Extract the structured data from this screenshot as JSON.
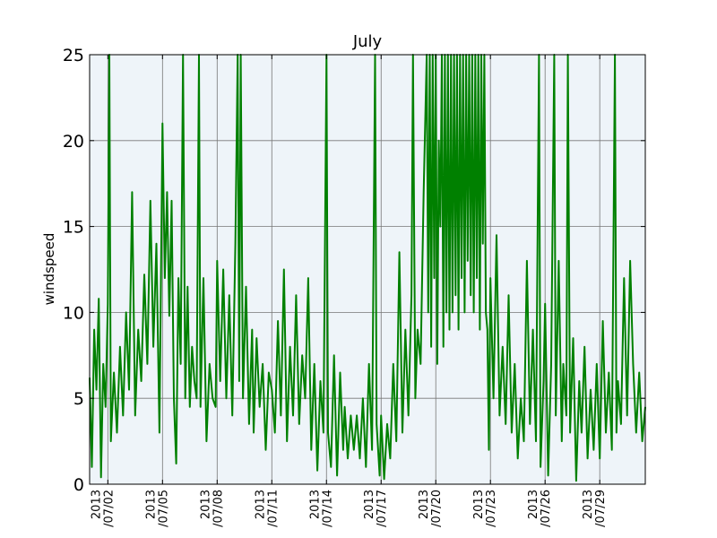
{
  "chart_data": {
    "type": "line",
    "title": "July",
    "xlabel": "",
    "ylabel": "windspeed",
    "ylim": [
      0,
      25
    ],
    "xlim": [
      "2013-07-01T00:00",
      "2013-07-31T12:00"
    ],
    "yticks": [
      0,
      5,
      10,
      15,
      20,
      25
    ],
    "xticks": [
      {
        "date": "2013-07-02",
        "label": [
          "2013",
          "/07/02"
        ]
      },
      {
        "date": "2013-07-05",
        "label": [
          "2013",
          "/07/05"
        ]
      },
      {
        "date": "2013-07-08",
        "label": [
          "2013",
          "/07/08"
        ]
      },
      {
        "date": "2013-07-11",
        "label": [
          "2013",
          "/07/11"
        ]
      },
      {
        "date": "2013-07-14",
        "label": [
          "2013",
          "/07/14"
        ]
      },
      {
        "date": "2013-07-17",
        "label": [
          "2013",
          "/07/17"
        ]
      },
      {
        "date": "2013-07-20",
        "label": [
          "2013",
          "/07/20"
        ]
      },
      {
        "date": "2013-07-23",
        "label": [
          "2013",
          "/07/23"
        ]
      },
      {
        "date": "2013-07-26",
        "label": [
          "2013",
          "/07/26"
        ]
      },
      {
        "date": "2013-07-29",
        "label": [
          "2013",
          "/07/29"
        ]
      }
    ],
    "grid": true,
    "plot_background": "#eef4f9",
    "series": [
      {
        "color": "#008000",
        "points": [
          [
            "2013-07-01T00:00",
            6.2
          ],
          [
            "2013-07-01T03:00",
            1.0
          ],
          [
            "2013-07-01T06:00",
            9.0
          ],
          [
            "2013-07-01T09:00",
            5.5
          ],
          [
            "2013-07-01T12:00",
            10.8
          ],
          [
            "2013-07-01T15:00",
            0.4
          ],
          [
            "2013-07-01T18:00",
            7.0
          ],
          [
            "2013-07-01T21:00",
            4.5
          ],
          [
            "2013-07-02T00:00",
            10.5
          ],
          [
            "2013-07-02T02:00",
            25.0
          ],
          [
            "2013-07-02T04:00",
            2.5
          ],
          [
            "2013-07-02T08:00",
            6.5
          ],
          [
            "2013-07-02T12:00",
            3.0
          ],
          [
            "2013-07-02T16:00",
            8.0
          ],
          [
            "2013-07-02T20:00",
            4.0
          ],
          [
            "2013-07-03T00:00",
            10.0
          ],
          [
            "2013-07-03T04:00",
            5.5
          ],
          [
            "2013-07-03T08:00",
            17.0
          ],
          [
            "2013-07-03T12:00",
            4.0
          ],
          [
            "2013-07-03T16:00",
            9.0
          ],
          [
            "2013-07-03T20:00",
            6.0
          ],
          [
            "2013-07-04T00:00",
            12.2
          ],
          [
            "2013-07-04T04:00",
            7.0
          ],
          [
            "2013-07-04T08:00",
            16.5
          ],
          [
            "2013-07-04T12:00",
            8.0
          ],
          [
            "2013-07-04T16:00",
            14.0
          ],
          [
            "2013-07-04T20:00",
            3.0
          ],
          [
            "2013-07-05T00:00",
            21.0
          ],
          [
            "2013-07-05T03:00",
            12.0
          ],
          [
            "2013-07-05T06:00",
            17.0
          ],
          [
            "2013-07-05T09:00",
            9.8
          ],
          [
            "2013-07-05T12:00",
            16.5
          ],
          [
            "2013-07-05T15:00",
            5.0
          ],
          [
            "2013-07-05T18:00",
            1.2
          ],
          [
            "2013-07-05T21:00",
            12.0
          ],
          [
            "2013-07-06T00:00",
            7.0
          ],
          [
            "2013-07-06T03:00",
            25.0
          ],
          [
            "2013-07-06T06:00",
            5.0
          ],
          [
            "2013-07-06T09:00",
            11.5
          ],
          [
            "2013-07-06T12:00",
            4.5
          ],
          [
            "2013-07-06T15:00",
            8.0
          ],
          [
            "2013-07-06T18:00",
            6.0
          ],
          [
            "2013-07-06T21:00",
            5.0
          ],
          [
            "2013-07-07T00:00",
            25.0
          ],
          [
            "2013-07-07T02:00",
            4.5
          ],
          [
            "2013-07-07T06:00",
            12.0
          ],
          [
            "2013-07-07T10:00",
            2.5
          ],
          [
            "2013-07-07T14:00",
            7.0
          ],
          [
            "2013-07-07T18:00",
            5.0
          ],
          [
            "2013-07-07T22:00",
            4.5
          ],
          [
            "2013-07-08T00:00",
            13.0
          ],
          [
            "2013-07-08T04:00",
            6.0
          ],
          [
            "2013-07-08T08:00",
            12.5
          ],
          [
            "2013-07-08T12:00",
            5.0
          ],
          [
            "2013-07-08T16:00",
            11.0
          ],
          [
            "2013-07-08T20:00",
            4.0
          ],
          [
            "2013-07-09T00:00",
            14.0
          ],
          [
            "2013-07-09T03:00",
            25.0
          ],
          [
            "2013-07-09T05:00",
            6.0
          ],
          [
            "2013-07-09T07:00",
            25.0
          ],
          [
            "2013-07-09T10:00",
            5.0
          ],
          [
            "2013-07-09T14:00",
            11.5
          ],
          [
            "2013-07-09T18:00",
            3.5
          ],
          [
            "2013-07-09T22:00",
            9.0
          ],
          [
            "2013-07-10T00:00",
            3.0
          ],
          [
            "2013-07-10T04:00",
            8.5
          ],
          [
            "2013-07-10T08:00",
            4.5
          ],
          [
            "2013-07-10T12:00",
            7.0
          ],
          [
            "2013-07-10T16:00",
            2.0
          ],
          [
            "2013-07-10T20:00",
            6.5
          ],
          [
            "2013-07-11T00:00",
            5.5
          ],
          [
            "2013-07-11T04:00",
            3.0
          ],
          [
            "2013-07-11T08:00",
            9.5
          ],
          [
            "2013-07-11T12:00",
            4.0
          ],
          [
            "2013-07-11T16:00",
            12.5
          ],
          [
            "2013-07-11T20:00",
            2.5
          ],
          [
            "2013-07-12T00:00",
            8.0
          ],
          [
            "2013-07-12T04:00",
            4.0
          ],
          [
            "2013-07-12T08:00",
            11.0
          ],
          [
            "2013-07-12T12:00",
            3.5
          ],
          [
            "2013-07-12T16:00",
            7.5
          ],
          [
            "2013-07-12T20:00",
            5.0
          ],
          [
            "2013-07-13T00:00",
            12.0
          ],
          [
            "2013-07-13T04:00",
            2.0
          ],
          [
            "2013-07-13T08:00",
            7.0
          ],
          [
            "2013-07-13T12:00",
            0.8
          ],
          [
            "2013-07-13T16:00",
            6.0
          ],
          [
            "2013-07-13T20:00",
            3.0
          ],
          [
            "2013-07-14T00:00",
            25.0
          ],
          [
            "2013-07-14T02:00",
            3.0
          ],
          [
            "2013-07-14T06:00",
            1.0
          ],
          [
            "2013-07-14T10:00",
            7.5
          ],
          [
            "2013-07-14T14:00",
            0.5
          ],
          [
            "2013-07-14T18:00",
            6.5
          ],
          [
            "2013-07-14T22:00",
            2.0
          ],
          [
            "2013-07-15T00:00",
            4.5
          ],
          [
            "2013-07-15T04:00",
            1.5
          ],
          [
            "2013-07-15T08:00",
            4.0
          ],
          [
            "2013-07-15T12:00",
            2.0
          ],
          [
            "2013-07-15T16:00",
            4.0
          ],
          [
            "2013-07-15T20:00",
            1.5
          ],
          [
            "2013-07-16T00:00",
            5.0
          ],
          [
            "2013-07-16T04:00",
            1.0
          ],
          [
            "2013-07-16T08:00",
            7.0
          ],
          [
            "2013-07-16T12:00",
            2.0
          ],
          [
            "2013-07-16T16:00",
            25.0
          ],
          [
            "2013-07-16T18:00",
            3.5
          ],
          [
            "2013-07-16T22:00",
            0.5
          ],
          [
            "2013-07-17T00:00",
            4.0
          ],
          [
            "2013-07-17T04:00",
            0.3
          ],
          [
            "2013-07-17T08:00",
            3.5
          ],
          [
            "2013-07-17T12:00",
            1.5
          ],
          [
            "2013-07-17T16:00",
            7.0
          ],
          [
            "2013-07-17T20:00",
            2.5
          ],
          [
            "2013-07-18T00:00",
            13.5
          ],
          [
            "2013-07-18T04:00",
            3.0
          ],
          [
            "2013-07-18T08:00",
            9.0
          ],
          [
            "2013-07-18T12:00",
            4.0
          ],
          [
            "2013-07-18T16:00",
            11.0
          ],
          [
            "2013-07-18T18:00",
            25.0
          ],
          [
            "2013-07-18T21:00",
            5.0
          ],
          [
            "2013-07-19T00:00",
            9.0
          ],
          [
            "2013-07-19T04:00",
            7.0
          ],
          [
            "2013-07-19T08:00",
            17.0
          ],
          [
            "2013-07-19T12:00",
            25.0
          ],
          [
            "2013-07-19T14:00",
            10.0
          ],
          [
            "2013-07-19T16:00",
            25.0
          ],
          [
            "2013-07-19T18:00",
            8.0
          ],
          [
            "2013-07-19T20:00",
            25.0
          ],
          [
            "2013-07-19T22:00",
            12.0
          ],
          [
            "2013-07-20T00:00",
            25.0
          ],
          [
            "2013-07-20T02:00",
            7.0
          ],
          [
            "2013-07-20T04:00",
            20.0
          ],
          [
            "2013-07-20T06:00",
            15.0
          ],
          [
            "2013-07-20T08:00",
            25.0
          ],
          [
            "2013-07-20T10:00",
            8.0
          ],
          [
            "2013-07-20T12:00",
            25.0
          ],
          [
            "2013-07-20T14:00",
            10.0
          ],
          [
            "2013-07-20T16:00",
            25.0
          ],
          [
            "2013-07-20T18:00",
            9.0
          ],
          [
            "2013-07-20T20:00",
            25.0
          ],
          [
            "2013-07-20T22:00",
            10.0
          ],
          [
            "2013-07-21T00:00",
            25.0
          ],
          [
            "2013-07-21T02:00",
            11.0
          ],
          [
            "2013-07-21T04:00",
            25.0
          ],
          [
            "2013-07-21T06:00",
            9.0
          ],
          [
            "2013-07-21T08:00",
            25.0
          ],
          [
            "2013-07-21T10:00",
            12.0
          ],
          [
            "2013-07-21T12:00",
            25.0
          ],
          [
            "2013-07-21T14:00",
            10.0
          ],
          [
            "2013-07-21T16:00",
            25.0
          ],
          [
            "2013-07-21T18:00",
            13.0
          ],
          [
            "2013-07-21T20:00",
            25.0
          ],
          [
            "2013-07-21T22:00",
            11.0
          ],
          [
            "2013-07-22T00:00",
            25.0
          ],
          [
            "2013-07-22T02:00",
            10.0
          ],
          [
            "2013-07-22T04:00",
            25.0
          ],
          [
            "2013-07-22T06:00",
            12.0
          ],
          [
            "2013-07-22T08:00",
            25.0
          ],
          [
            "2013-07-22T10:00",
            9.0
          ],
          [
            "2013-07-22T12:00",
            25.0
          ],
          [
            "2013-07-22T14:00",
            14.0
          ],
          [
            "2013-07-22T16:00",
            25.0
          ],
          [
            "2013-07-22T18:00",
            10.0
          ],
          [
            "2013-07-22T20:00",
            9.0
          ],
          [
            "2013-07-22T22:00",
            2.0
          ],
          [
            "2013-07-23T00:00",
            12.0
          ],
          [
            "2013-07-23T04:00",
            5.0
          ],
          [
            "2013-07-23T08:00",
            14.5
          ],
          [
            "2013-07-23T12:00",
            4.0
          ],
          [
            "2013-07-23T16:00",
            8.0
          ],
          [
            "2013-07-23T20:00",
            3.5
          ],
          [
            "2013-07-24T00:00",
            11.0
          ],
          [
            "2013-07-24T04:00",
            3.0
          ],
          [
            "2013-07-24T08:00",
            7.0
          ],
          [
            "2013-07-24T12:00",
            1.5
          ],
          [
            "2013-07-24T16:00",
            5.0
          ],
          [
            "2013-07-24T20:00",
            2.5
          ],
          [
            "2013-07-25T00:00",
            13.0
          ],
          [
            "2013-07-25T04:00",
            3.5
          ],
          [
            "2013-07-25T08:00",
            9.0
          ],
          [
            "2013-07-25T12:00",
            2.5
          ],
          [
            "2013-07-25T16:00",
            25.0
          ],
          [
            "2013-07-25T18:00",
            1.0
          ],
          [
            "2013-07-25T22:00",
            6.0
          ],
          [
            "2013-07-26T00:00",
            10.5
          ],
          [
            "2013-07-26T04:00",
            0.5
          ],
          [
            "2013-07-26T08:00",
            7.0
          ],
          [
            "2013-07-26T12:00",
            25.0
          ],
          [
            "2013-07-26T14:00",
            4.0
          ],
          [
            "2013-07-26T18:00",
            13.0
          ],
          [
            "2013-07-26T22:00",
            2.5
          ],
          [
            "2013-07-27T00:00",
            7.0
          ],
          [
            "2013-07-27T04:00",
            4.0
          ],
          [
            "2013-07-27T06:00",
            25.0
          ],
          [
            "2013-07-27T09:00",
            3.0
          ],
          [
            "2013-07-27T13:00",
            8.5
          ],
          [
            "2013-07-27T17:00",
            0.2
          ],
          [
            "2013-07-27T21:00",
            6.0
          ],
          [
            "2013-07-28T00:00",
            3.0
          ],
          [
            "2013-07-28T04:00",
            8.0
          ],
          [
            "2013-07-28T08:00",
            1.5
          ],
          [
            "2013-07-28T12:00",
            5.5
          ],
          [
            "2013-07-28T16:00",
            2.0
          ],
          [
            "2013-07-28T20:00",
            7.0
          ],
          [
            "2013-07-29T00:00",
            1.5
          ],
          [
            "2013-07-29T04:00",
            9.5
          ],
          [
            "2013-07-29T08:00",
            3.0
          ],
          [
            "2013-07-29T12:00",
            6.5
          ],
          [
            "2013-07-29T16:00",
            2.0
          ],
          [
            "2013-07-29T20:00",
            25.0
          ],
          [
            "2013-07-29T22:00",
            3.0
          ],
          [
            "2013-07-30T00:00",
            6.0
          ],
          [
            "2013-07-30T04:00",
            3.5
          ],
          [
            "2013-07-30T08:00",
            12.0
          ],
          [
            "2013-07-30T12:00",
            4.0
          ],
          [
            "2013-07-30T16:00",
            13.0
          ],
          [
            "2013-07-30T20:00",
            7.0
          ],
          [
            "2013-07-31T00:00",
            3.0
          ],
          [
            "2013-07-31T04:00",
            6.5
          ],
          [
            "2013-07-31T08:00",
            2.5
          ],
          [
            "2013-07-31T12:00",
            4.5
          ]
        ]
      }
    ]
  }
}
